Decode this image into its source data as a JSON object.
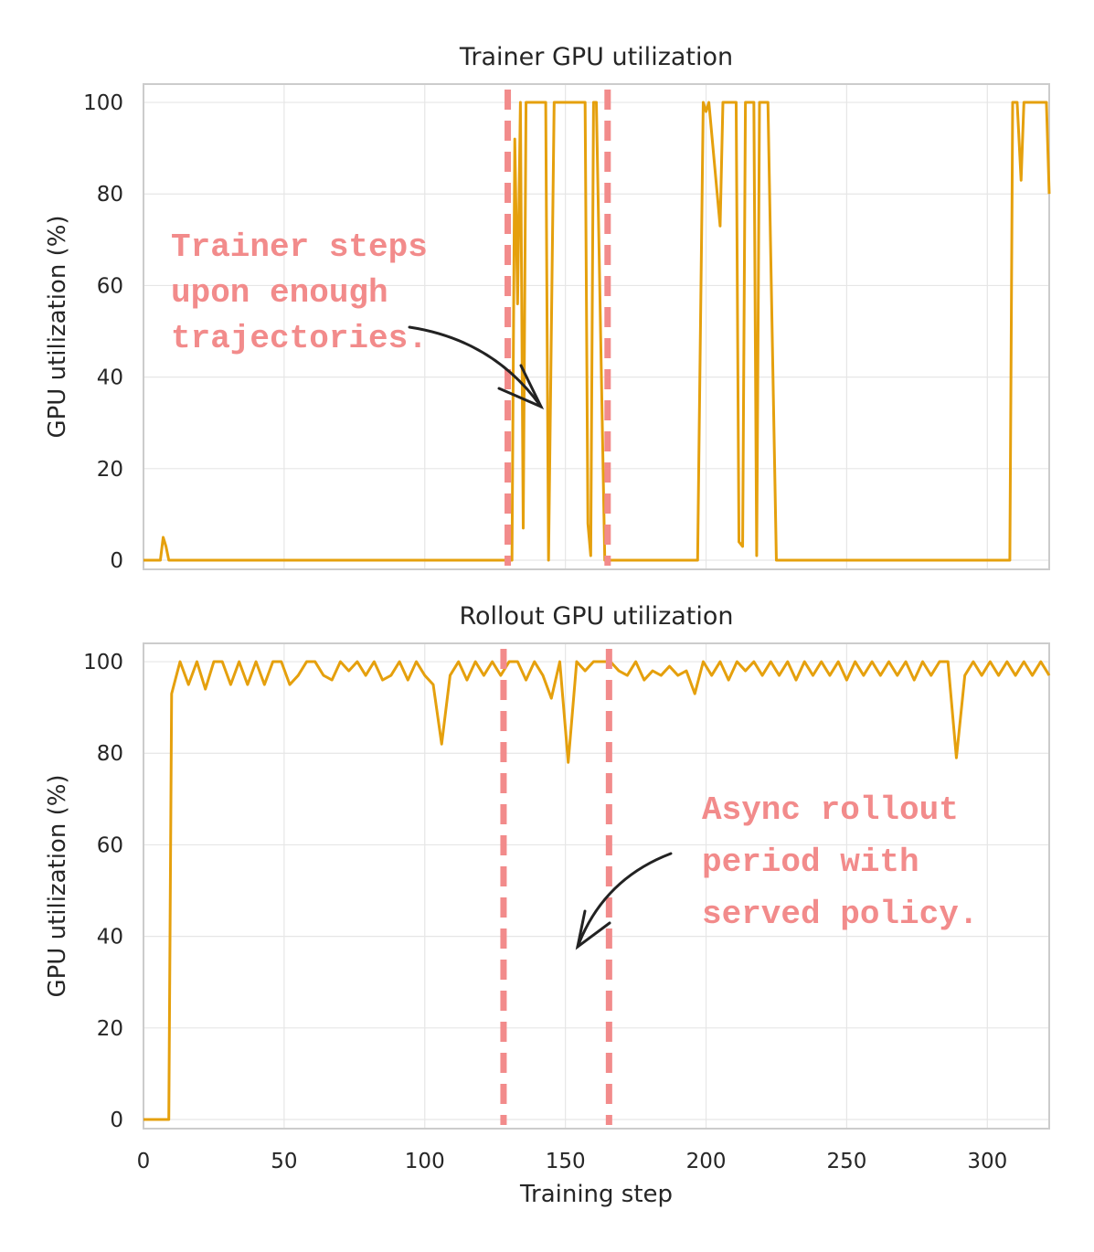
{
  "chart_data": [
    {
      "type": "line",
      "title": "Trainer GPU utilization",
      "ylabel": "GPU utilization (%)",
      "xlim": [
        0,
        322
      ],
      "ylim": [
        -2,
        104
      ],
      "xticks": [
        0,
        50,
        100,
        150,
        200,
        250,
        300
      ],
      "xtick_labels": false,
      "yticks": [
        0,
        20,
        40,
        60,
        80,
        100
      ],
      "grid": true,
      "vlines": [
        129.5,
        165
      ],
      "vline_color": "#f28b8b",
      "annotation": [
        "Trainer steps",
        "upon enough",
        "trajectories."
      ],
      "series": [
        {
          "color": "#e5a00d",
          "x": [
            0,
            6,
            7,
            8,
            9,
            131,
            132,
            133,
            134,
            135,
            136,
            137,
            143,
            144,
            146,
            157,
            158,
            159,
            160,
            161,
            164,
            197,
            199,
            200,
            201,
            205,
            206,
            210.7,
            211.7,
            213,
            214,
            217,
            218,
            219,
            222,
            225,
            308,
            309,
            310.6,
            312,
            313,
            321,
            322
          ],
          "values": [
            0,
            0,
            5,
            3,
            0,
            0,
            92,
            56,
            100,
            7,
            100,
            100,
            100,
            0,
            100,
            100,
            8,
            1,
            100,
            100,
            0,
            0,
            100,
            98,
            100,
            73,
            100,
            100,
            4,
            3,
            100,
            100,
            1,
            100,
            100,
            0,
            0,
            100,
            100,
            83,
            100,
            100,
            80
          ]
        }
      ]
    },
    {
      "type": "line",
      "title": "Rollout GPU utilization",
      "ylabel": "GPU utilization (%)",
      "xlabel": "Training step",
      "xlim": [
        0,
        322
      ],
      "ylim": [
        -2,
        104
      ],
      "xticks": [
        0,
        50,
        100,
        150,
        200,
        250,
        300
      ],
      "xtick_labels": true,
      "yticks": [
        0,
        20,
        40,
        60,
        80,
        100
      ],
      "grid": true,
      "vlines": [
        128,
        165.5
      ],
      "vline_color": "#f28b8b",
      "annotation": [
        "Async rollout",
        "period with",
        "served policy."
      ],
      "series": [
        {
          "color": "#e5a00d",
          "x": [
            0,
            9,
            10,
            13,
            16,
            19,
            22,
            25,
            28,
            31,
            34,
            37,
            40,
            43,
            46,
            49,
            52,
            55,
            58,
            61,
            64,
            67,
            70,
            73,
            76,
            79,
            82,
            85,
            88,
            91,
            94,
            97,
            100,
            103,
            106,
            109,
            112,
            115,
            118,
            121,
            124,
            127,
            130,
            133,
            136,
            139,
            142,
            145,
            148,
            151,
            154,
            157,
            160,
            163,
            166,
            169,
            172,
            175,
            178,
            181,
            184,
            187,
            190,
            193,
            196,
            199,
            202,
            205,
            208,
            211,
            214,
            217,
            220,
            223,
            226,
            229,
            232,
            235,
            238,
            241,
            244,
            247,
            250,
            253,
            256,
            259,
            262,
            265,
            268,
            271,
            274,
            277,
            280,
            283,
            286,
            289,
            292,
            295,
            298,
            301,
            304,
            307,
            310,
            313,
            316,
            319,
            322
          ],
          "values": [
            0,
            0,
            93,
            100,
            95,
            100,
            94,
            100,
            100,
            95,
            100,
            95,
            100,
            95,
            100,
            100,
            95,
            97,
            100,
            100,
            97,
            96,
            100,
            98,
            100,
            97,
            100,
            96,
            97,
            100,
            96,
            100,
            97,
            95,
            82,
            97,
            100,
            96,
            100,
            97,
            100,
            97,
            100,
            100,
            96,
            100,
            97,
            92,
            100,
            78,
            100,
            98,
            100,
            100,
            100,
            98,
            97,
            100,
            96,
            98,
            97,
            99,
            97,
            98,
            93,
            100,
            97,
            100,
            96,
            100,
            98,
            100,
            97,
            100,
            97,
            100,
            96,
            100,
            97,
            100,
            97,
            100,
            96,
            100,
            97,
            100,
            97,
            100,
            97,
            100,
            96,
            100,
            97,
            100,
            100,
            79,
            97,
            100,
            97,
            100,
            97,
            100,
            97,
            100,
            97,
            100,
            97
          ]
        }
      ]
    }
  ]
}
